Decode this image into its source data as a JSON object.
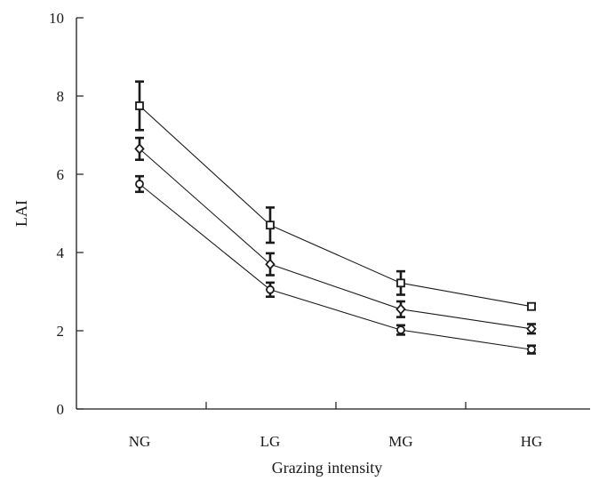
{
  "chart_data": {
    "type": "line",
    "xlabel": "Grazing intensity",
    "ylabel": "LAI",
    "categories": [
      "NG",
      "LG",
      "MG",
      "HG"
    ],
    "ylim": [
      0,
      10
    ],
    "yticks": [
      "0",
      "2",
      "4",
      "6",
      "8",
      "10"
    ],
    "grid": false,
    "legend": "none",
    "series": [
      {
        "marker": "square",
        "values": [
          7.75,
          4.7,
          3.22,
          2.62
        ],
        "errors": [
          0.62,
          0.45,
          0.3,
          0.08
        ]
      },
      {
        "marker": "diamond",
        "values": [
          6.65,
          3.7,
          2.55,
          2.05
        ],
        "errors": [
          0.28,
          0.28,
          0.2,
          0.12
        ]
      },
      {
        "marker": "circle",
        "values": [
          5.75,
          3.05,
          2.02,
          1.52
        ],
        "errors": [
          0.2,
          0.18,
          0.12,
          0.1
        ]
      }
    ],
    "colors": {
      "ink": "#1a1a1a",
      "marker_fill": "#ffffff"
    }
  }
}
